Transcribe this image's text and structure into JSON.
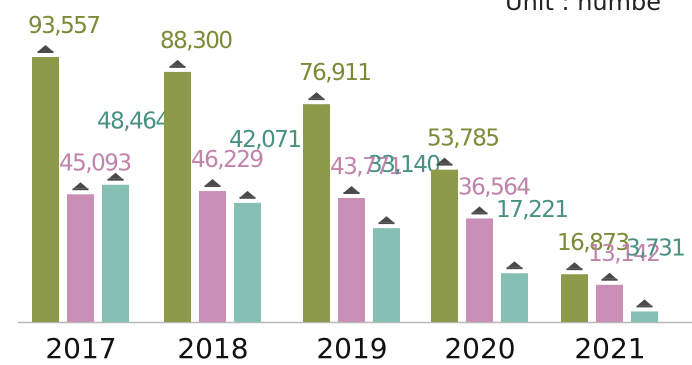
{
  "chart_data": {
    "type": "bar",
    "unit_note": "Unit : numbe",
    "categories": [
      "2017",
      "2018",
      "2019",
      "2020",
      "2021"
    ],
    "series": [
      {
        "values": [
          93557,
          88300,
          76911,
          53785,
          16873
        ],
        "color": "#8d9a4a",
        "label_color": "#7d8a38"
      },
      {
        "values": [
          45093,
          46229,
          43771,
          36564,
          13142
        ],
        "color": "#c98fb6",
        "label_color": "#c083ab"
      },
      {
        "values": [
          48464,
          42071,
          33140,
          17221,
          3731
        ],
        "color": "#86c0b4",
        "label_color": "#4a9184"
      }
    ],
    "value_labels": [
      [
        "93,557",
        "88,300",
        "76,911",
        "53,785",
        "16,873"
      ],
      [
        "45,093",
        "46,229",
        "43,771",
        "36,564",
        "13,142"
      ],
      [
        "48,464",
        "42,071",
        "33,140",
        "17,221",
        "3,731"
      ]
    ],
    "bar_icon": "bank-building-icon",
    "ylim": [
      0,
      100000
    ],
    "grid": false,
    "legend": "none"
  }
}
